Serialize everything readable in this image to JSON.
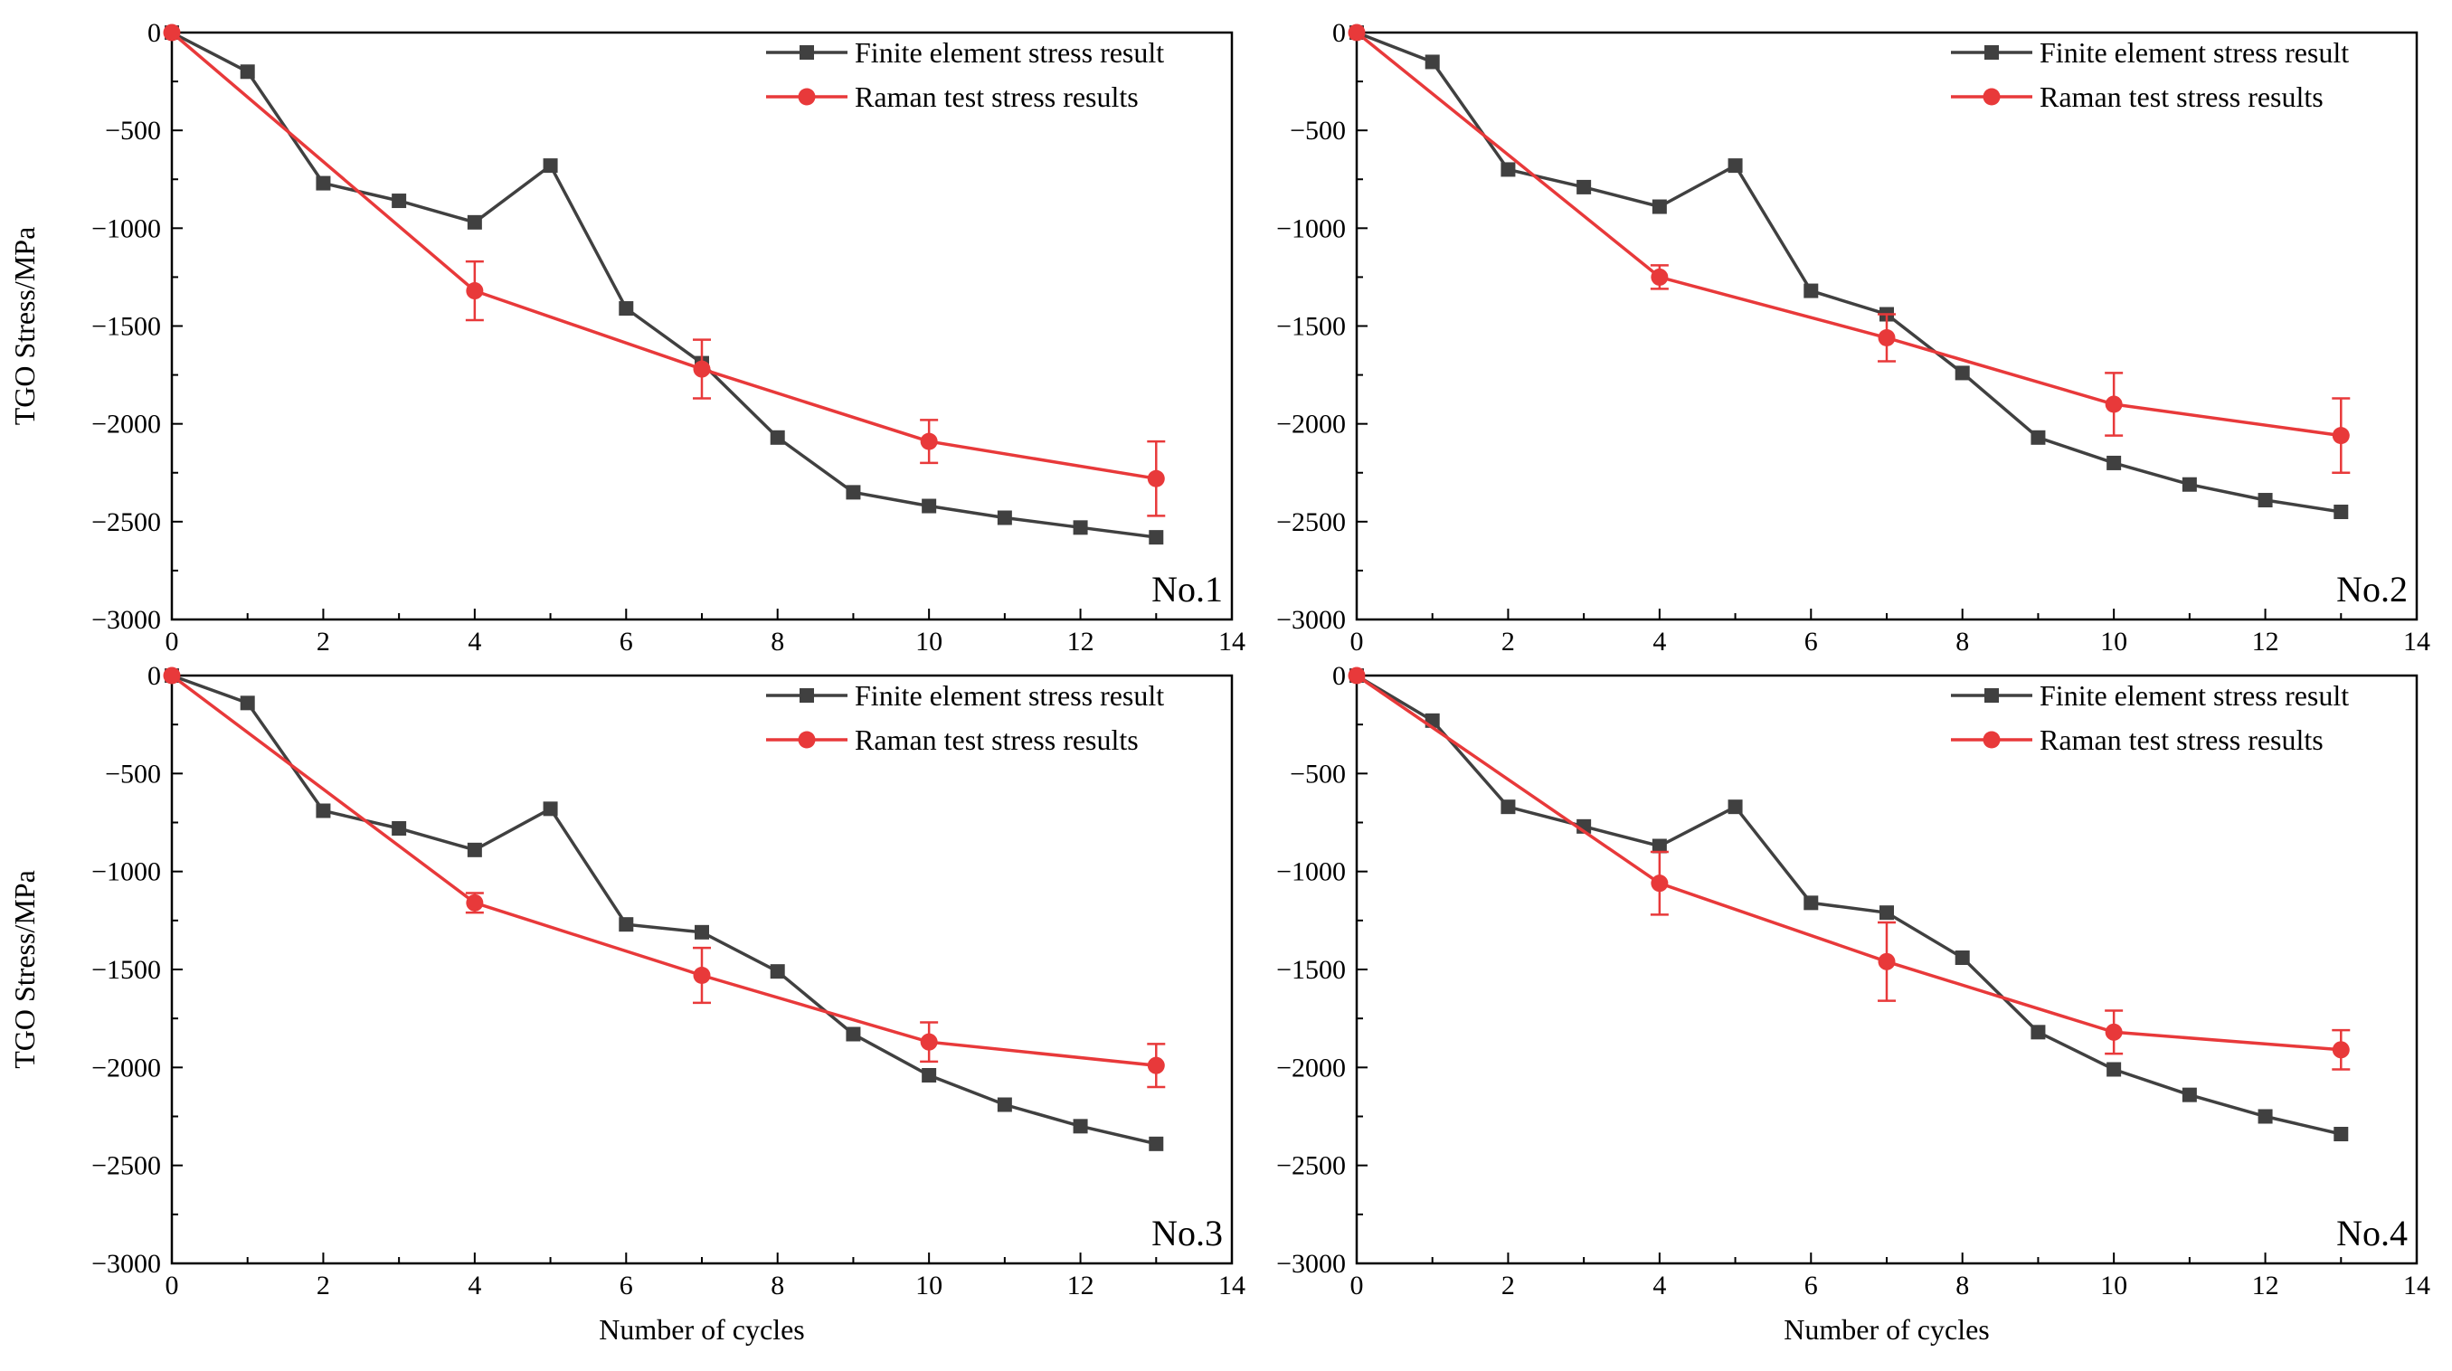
{
  "chart_data": [
    {
      "type": "line",
      "panel_label": "No.1",
      "xlabel": "",
      "ylabel": "TGO Stress/MPa",
      "xlim": [
        0,
        14
      ],
      "ylim": [
        -3000,
        0
      ],
      "xticks": [
        "0",
        "2",
        "4",
        "6",
        "8",
        "10",
        "12",
        "14"
      ],
      "yticks": [
        "0",
        "−500",
        "−1000",
        "−1500",
        "−2000",
        "−2500",
        "−3000"
      ],
      "legend_position": "top-right",
      "series": [
        {
          "name": "Finite element stress result",
          "color": "#404040",
          "marker": "square",
          "x": [
            0,
            1,
            2,
            3,
            4,
            5,
            6,
            7,
            8,
            9,
            10,
            11,
            12,
            13
          ],
          "y": [
            0,
            -200,
            -770,
            -860,
            -970,
            -680,
            -1410,
            -1690,
            -2070,
            -2350,
            -2420,
            -2480,
            -2530,
            -2580
          ]
        },
        {
          "name": "Raman test stress results",
          "color": "#e8393a",
          "marker": "circle",
          "x": [
            0,
            4,
            7,
            10,
            13
          ],
          "y": [
            0,
            -1320,
            -1720,
            -2090,
            -2280
          ],
          "err": [
            0,
            150,
            150,
            110,
            190
          ]
        }
      ]
    },
    {
      "type": "line",
      "panel_label": "No.2",
      "xlabel": "",
      "ylabel": "",
      "xlim": [
        0,
        14
      ],
      "ylim": [
        -3000,
        0
      ],
      "xticks": [
        "0",
        "2",
        "4",
        "6",
        "8",
        "10",
        "12",
        "14"
      ],
      "yticks": [
        "0",
        "−500",
        "−1000",
        "−1500",
        "−2000",
        "−2500",
        "−3000"
      ],
      "legend_position": "top-right",
      "series": [
        {
          "name": "Finite element stress result",
          "color": "#404040",
          "marker": "square",
          "x": [
            0,
            1,
            2,
            3,
            4,
            5,
            6,
            7,
            8,
            9,
            10,
            11,
            12,
            13
          ],
          "y": [
            0,
            -150,
            -700,
            -790,
            -890,
            -680,
            -1320,
            -1440,
            -1740,
            -2070,
            -2200,
            -2310,
            -2390,
            -2450
          ]
        },
        {
          "name": "Raman test stress results",
          "color": "#e8393a",
          "marker": "circle",
          "x": [
            0,
            4,
            7,
            10,
            13
          ],
          "y": [
            0,
            -1250,
            -1560,
            -1900,
            -2060
          ],
          "err": [
            0,
            60,
            120,
            160,
            190
          ]
        }
      ]
    },
    {
      "type": "line",
      "panel_label": "No.3",
      "xlabel": "Number of cycles",
      "ylabel": "TGO Stress/MPa",
      "xlim": [
        0,
        14
      ],
      "ylim": [
        -3000,
        0
      ],
      "xticks": [
        "0",
        "2",
        "4",
        "6",
        "8",
        "10",
        "12",
        "14"
      ],
      "yticks": [
        "0",
        "−500",
        "−1000",
        "−1500",
        "−2000",
        "−2500",
        "−3000"
      ],
      "legend_position": "top-right",
      "series": [
        {
          "name": "Finite element stress result",
          "color": "#404040",
          "marker": "square",
          "x": [
            0,
            1,
            2,
            3,
            4,
            5,
            6,
            7,
            8,
            9,
            10,
            11,
            12,
            13
          ],
          "y": [
            0,
            -140,
            -690,
            -780,
            -890,
            -680,
            -1270,
            -1310,
            -1510,
            -1830,
            -2040,
            -2190,
            -2300,
            -2390
          ]
        },
        {
          "name": "Raman test stress results",
          "color": "#e8393a",
          "marker": "circle",
          "x": [
            0,
            4,
            7,
            10,
            13
          ],
          "y": [
            0,
            -1160,
            -1530,
            -1870,
            -1990
          ],
          "err": [
            0,
            50,
            140,
            100,
            110
          ]
        }
      ]
    },
    {
      "type": "line",
      "panel_label": "No.4",
      "xlabel": "Number of cycles",
      "ylabel": "",
      "xlim": [
        0,
        14
      ],
      "ylim": [
        -3000,
        0
      ],
      "xticks": [
        "0",
        "2",
        "4",
        "6",
        "8",
        "10",
        "12",
        "14"
      ],
      "yticks": [
        "0",
        "−500",
        "−1000",
        "−1500",
        "−2000",
        "−2500",
        "−3000"
      ],
      "legend_position": "top-right",
      "series": [
        {
          "name": "Finite element stress result",
          "color": "#404040",
          "marker": "square",
          "x": [
            0,
            1,
            2,
            3,
            4,
            5,
            6,
            7,
            8,
            9,
            10,
            11,
            12,
            13
          ],
          "y": [
            0,
            -230,
            -670,
            -770,
            -870,
            -670,
            -1160,
            -1210,
            -1440,
            -1820,
            -2010,
            -2140,
            -2250,
            -2340
          ]
        },
        {
          "name": "Raman test stress results",
          "color": "#e8393a",
          "marker": "circle",
          "x": [
            0,
            4,
            7,
            10,
            13
          ],
          "y": [
            0,
            -1060,
            -1460,
            -1820,
            -1910
          ],
          "err": [
            0,
            160,
            200,
            110,
            100
          ]
        }
      ]
    }
  ]
}
